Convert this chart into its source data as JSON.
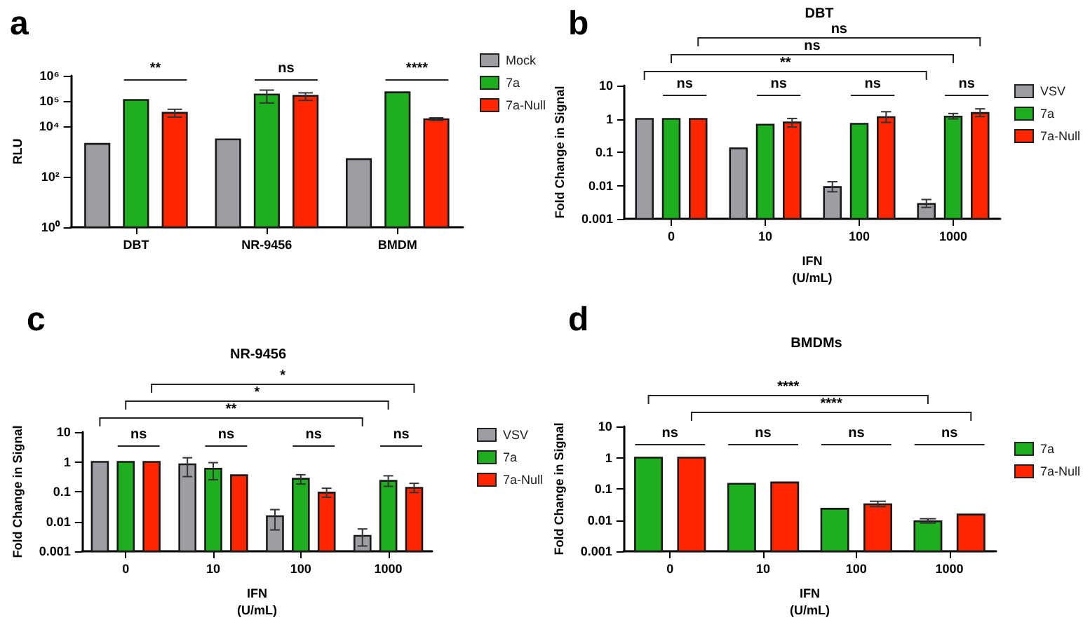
{
  "chart_data": [
    {
      "type": "bar",
      "title": "a",
      "ylabel": "RLU",
      "categories": [
        "DBT",
        "NR-9456",
        "BMDM"
      ],
      "log": true,
      "ylim": [
        1,
        1000000
      ],
      "yticks": [
        {
          "value": 1,
          "label": "10⁰"
        },
        {
          "value": 100,
          "label": "10²"
        },
        {
          "value": 10000,
          "label": "10⁴"
        },
        {
          "value": 100000,
          "label": "10⁵"
        },
        {
          "value": 1000000,
          "label": "10⁶"
        }
      ],
      "series": [
        {
          "name": "Mock",
          "color": "#a09ca3",
          "values": [
            2000,
            3000,
            500
          ]
        },
        {
          "name": "7a",
          "color": "#1fae1f",
          "values": [
            110000,
            180000,
            220000
          ],
          "errors": [
            null,
            [
              83000,
              270000
            ],
            null
          ]
        },
        {
          "name": "7a-Null",
          "color": "#ff2600",
          "values": [
            34000,
            160000,
            19000
          ],
          "errors": [
            [
              23000,
              47000
            ],
            [
              105000,
              210000
            ],
            [
              17000,
              21500
            ]
          ]
        }
      ],
      "annotations": [
        "**",
        "ns",
        "****"
      ],
      "legend": "top right"
    },
    {
      "type": "bar",
      "title": "b",
      "subtitle": "DBT",
      "ylabel": "Fold Change in Signal",
      "xlabel": "IFN\n(U/mL)",
      "categories": [
        "0",
        "10",
        "100",
        "1000"
      ],
      "log": true,
      "ylim": [
        0.001,
        10
      ],
      "yticks": [
        0.001,
        0.01,
        0.1,
        1,
        10
      ],
      "series": [
        {
          "name": "VSV",
          "color": "#a09ca3",
          "values": [
            1,
            0.13,
            0.009,
            0.0028
          ],
          "errors": [
            null,
            null,
            [
              0.0065,
              0.013
            ],
            [
              0.0022,
              0.0038
            ]
          ]
        },
        {
          "name": "7a",
          "color": "#1fae1f",
          "values": [
            1,
            0.67,
            0.71,
            1.17
          ],
          "errors": [
            null,
            null,
            null,
            [
              1,
              1.45
            ]
          ]
        },
        {
          "name": "7a-Null",
          "color": "#ff2600",
          "values": [
            1,
            0.78,
            1.13,
            1.5
          ],
          "errors": [
            null,
            [
              0.57,
              1.03
            ],
            [
              0.78,
              1.64
            ],
            [
              1.17,
              2
            ]
          ]
        }
      ],
      "annotations": [
        "ns",
        "ns",
        "**",
        "ns",
        "ns",
        "ns",
        "ns"
      ],
      "legend": "top right"
    },
    {
      "type": "bar",
      "title": "c",
      "subtitle": "NR-9456",
      "ylabel": "Fold Change in Signal",
      "xlabel": "IFN\n(U/mL)",
      "categories": [
        "0",
        "10",
        "100",
        "1000"
      ],
      "log": true,
      "ylim": [
        0.001,
        10
      ],
      "yticks": [
        0.001,
        0.01,
        0.1,
        1,
        10
      ],
      "series": [
        {
          "name": "VSV",
          "color": "#a09ca3",
          "values": [
            1,
            0.83,
            0.015,
            0.0033
          ],
          "errors": [
            null,
            [
              0.32,
              1.37
            ],
            [
              0.0052,
              0.025
            ],
            [
              0.0015,
              0.0056
            ]
          ]
        },
        {
          "name": "7a",
          "color": "#1fae1f",
          "values": [
            1,
            0.59,
            0.27,
            0.23
          ],
          "errors": [
            null,
            [
              0.25,
              0.94
            ],
            [
              0.18,
              0.37
            ],
            [
              0.15,
              0.34
            ]
          ]
        },
        {
          "name": "7a-Null",
          "color": "#ff2600",
          "values": [
            1,
            0.355,
            0.093,
            0.135
          ],
          "errors": [
            null,
            null,
            [
              0.065,
              0.13
            ],
            [
              0.093,
              0.19
            ]
          ]
        }
      ],
      "annotations": [
        "*",
        "*",
        "**",
        "ns",
        "ns",
        "ns",
        "ns"
      ],
      "legend": "top right"
    },
    {
      "type": "bar",
      "title": "d",
      "subtitle": "BMDMs",
      "ylabel": "Fold Change in Signal",
      "xlabel": "IFN\n(U/mL)",
      "categories": [
        "0",
        "10",
        "100",
        "1000"
      ],
      "log": true,
      "ylim": [
        0.001,
        10
      ],
      "yticks": [
        0.001,
        0.01,
        0.1,
        1,
        10
      ],
      "series": [
        {
          "name": "7a",
          "color": "#1fae1f",
          "values": [
            1,
            0.145,
            0.023,
            0.0091
          ],
          "errors": [
            null,
            null,
            null,
            [
              0.008,
              0.011
            ]
          ]
        },
        {
          "name": "7a-Null",
          "color": "#ff2600",
          "values": [
            1,
            0.16,
            0.032,
            0.015
          ],
          "errors": [
            null,
            null,
            [
              0.027,
              0.04
            ],
            null
          ]
        }
      ],
      "annotations": [
        "****",
        "****",
        "ns",
        "ns",
        "ns",
        "ns"
      ],
      "legend": "top right"
    }
  ]
}
